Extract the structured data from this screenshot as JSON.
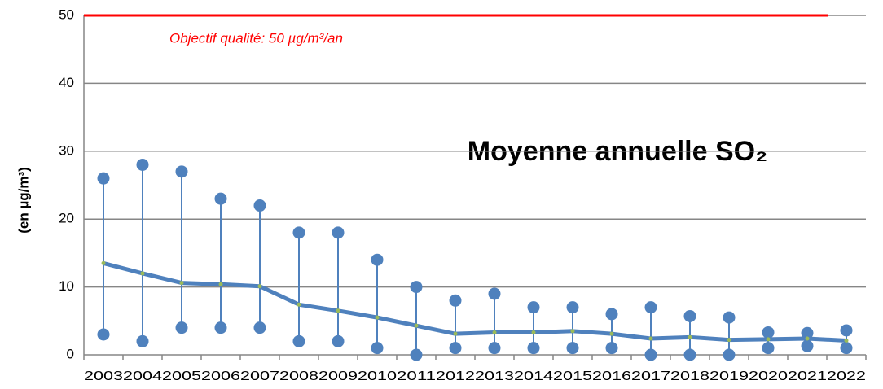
{
  "chart_data": {
    "type": "range-line",
    "title": "Moyenne annuelle SO₂",
    "y_label": "(en µg/m³)",
    "annotation": "Objectif qualité: 50 µg/m³/an",
    "objective": {
      "value": 50,
      "color": "#ff0000"
    },
    "categories": [
      "2003",
      "2004",
      "2005",
      "2006",
      "2007",
      "2008",
      "2009",
      "2010",
      "2011",
      "2012",
      "2013",
      "2014",
      "2015",
      "2016",
      "2017",
      "2018",
      "2019",
      "2020",
      "2021",
      "2022"
    ],
    "series": [
      {
        "role": "max",
        "color": "#4f81bd",
        "values": [
          26,
          28,
          27,
          23,
          22,
          18,
          18,
          14,
          10,
          8,
          9,
          7,
          7,
          6,
          7,
          5.7,
          5.5,
          3.3,
          3.2,
          3.6
        ]
      },
      {
        "role": "min",
        "color": "#4f81bd",
        "values": [
          3,
          2,
          4,
          4,
          4,
          2,
          2,
          1,
          0,
          1,
          1,
          1,
          1,
          1,
          0,
          0,
          0,
          1,
          1.3,
          1
        ]
      },
      {
        "role": "mean",
        "color": "#4f81bd",
        "marker_color": "#9bbb59",
        "values": [
          13.5,
          12,
          10.6,
          10.4,
          10.1,
          7.4,
          6.5,
          5.5,
          4.3,
          3.1,
          3.3,
          3.3,
          3.5,
          3.1,
          2.4,
          2.6,
          2.2,
          2.3,
          2.4,
          2.1
        ]
      }
    ],
    "ylim": [
      0,
      50
    ],
    "yticks": [
      0,
      10,
      20,
      30,
      40,
      50
    ],
    "grid": true
  }
}
